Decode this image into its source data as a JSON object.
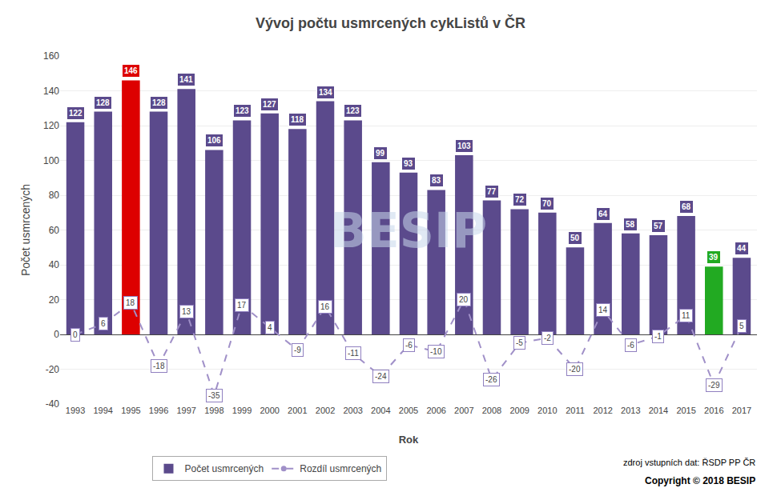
{
  "chart_data": {
    "type": "bar",
    "title": "Vývoj počtu usmrcených cykListů v ČR",
    "x_label": "Rok",
    "y_label": "Počet usmrcených",
    "categories": [
      "1993",
      "1994",
      "1995",
      "1996",
      "1997",
      "1998",
      "1999",
      "2000",
      "2001",
      "2002",
      "2003",
      "2004",
      "2005",
      "2006",
      "2007",
      "2008",
      "2009",
      "2010",
      "2011",
      "2012",
      "2013",
      "2014",
      "2015",
      "2016",
      "2017"
    ],
    "series": [
      {
        "name": "Počet usmrcených",
        "type": "bar",
        "colors": [
          "#5b4a8c",
          "#5b4a8c",
          "#dd0000",
          "#5b4a8c",
          "#5b4a8c",
          "#5b4a8c",
          "#5b4a8c",
          "#5b4a8c",
          "#5b4a8c",
          "#5b4a8c",
          "#5b4a8c",
          "#5b4a8c",
          "#5b4a8c",
          "#5b4a8c",
          "#5b4a8c",
          "#5b4a8c",
          "#5b4a8c",
          "#5b4a8c",
          "#5b4a8c",
          "#5b4a8c",
          "#5b4a8c",
          "#5b4a8c",
          "#5b4a8c",
          "#22aa22",
          "#5b4a8c"
        ],
        "values": [
          122,
          128,
          146,
          128,
          141,
          106,
          123,
          127,
          118,
          134,
          123,
          99,
          93,
          83,
          103,
          77,
          72,
          70,
          50,
          64,
          58,
          57,
          68,
          39,
          44
        ]
      },
      {
        "name": "Rozdíl usmrcených",
        "type": "line",
        "color": "#a090c8",
        "line_style": "dashed",
        "marker": "circle",
        "values": [
          0,
          6,
          18,
          -18,
          13,
          -35,
          17,
          4,
          -9,
          16,
          -11,
          -24,
          -6,
          -10,
          20,
          -26,
          -5,
          -2,
          -20,
          14,
          -6,
          -1,
          11,
          -29,
          5
        ]
      }
    ],
    "ylim": [
      -40,
      160
    ],
    "yticks": [
      -40,
      -20,
      0,
      20,
      40,
      60,
      80,
      100,
      120,
      140,
      160
    ],
    "grid": true,
    "legend": "bottom",
    "data_labels": true,
    "annotations": [
      "BESIP",
      "zdroj vstupních dat: ŘSDP PP ČR",
      "Copyright © 2018 BESIP"
    ]
  }
}
